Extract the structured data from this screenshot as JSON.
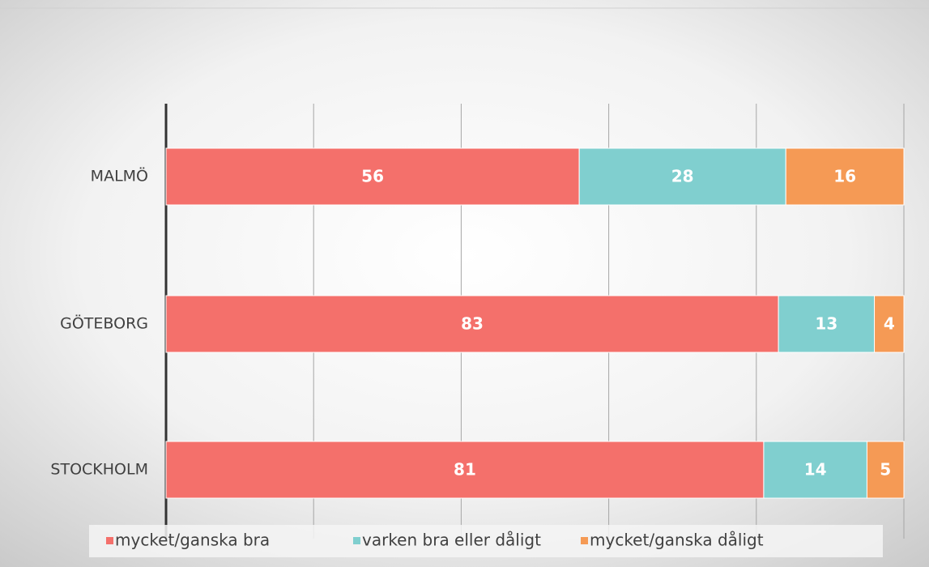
{
  "chart_data": {
    "type": "stacked-barh",
    "categories": [
      "MALMÖ",
      "GÖTEBORG",
      "STOCKHOLM"
    ],
    "series": [
      {
        "name": "mycket/ganska bra",
        "color": "#f4706b",
        "values": [
          56,
          83,
          81
        ]
      },
      {
        "name": "varken bra eller dåligt",
        "color": "#80cfcf",
        "values": [
          28,
          13,
          14
        ]
      },
      {
        "name": "mycket/ganska dåligt",
        "color": "#f59a55",
        "values": [
          16,
          4,
          5
        ]
      }
    ],
    "xlim": [
      0,
      100
    ],
    "xticks": [
      0,
      20,
      40,
      60,
      80,
      100
    ],
    "grid": true,
    "legend": "bottom"
  }
}
